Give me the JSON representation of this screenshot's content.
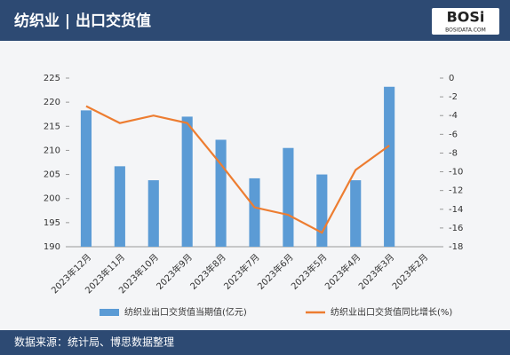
{
  "header": {
    "title": "纺织业 | 出口交货值",
    "logo": "BOSi",
    "logo_sub": "BOSIDATA.COM"
  },
  "chart_data": {
    "type": "bar-line",
    "categories": [
      "2023年12月",
      "2023年11月",
      "2023年10月",
      "2023年9月",
      "2023年8月",
      "2023年7月",
      "2023年6月",
      "2023年5月",
      "2023年4月",
      "2023年3月",
      "2023年2月"
    ],
    "series": [
      {
        "name": "纺织业出口交货值当期值(亿元)",
        "color": "#5b9bd5",
        "type": "bar",
        "values": [
          218.3,
          206.7,
          203.8,
          217,
          212.2,
          204.2,
          210.5,
          205,
          203.8,
          223.2,
          null
        ]
      },
      {
        "name": "纺织业出口交货值同比增长(%)",
        "color": "#ed7d31",
        "type": "line",
        "axis": "y2",
        "values": [
          -3.0,
          -4.8,
          -4.0,
          -4.8,
          -9.2,
          -13.8,
          -14.6,
          -16.5,
          -9.8,
          -7.2,
          null
        ]
      }
    ],
    "ylim": [
      190,
      225
    ],
    "yticks": [
      190,
      195,
      200,
      205,
      210,
      215,
      220,
      225
    ],
    "y2lim": [
      -18,
      0
    ],
    "y2ticks": [
      0,
      -2,
      -4,
      -6,
      -8,
      -10,
      -12,
      -14,
      -16,
      -18
    ]
  },
  "footer": {
    "source": "数据来源：统计局、博思数据整理"
  }
}
